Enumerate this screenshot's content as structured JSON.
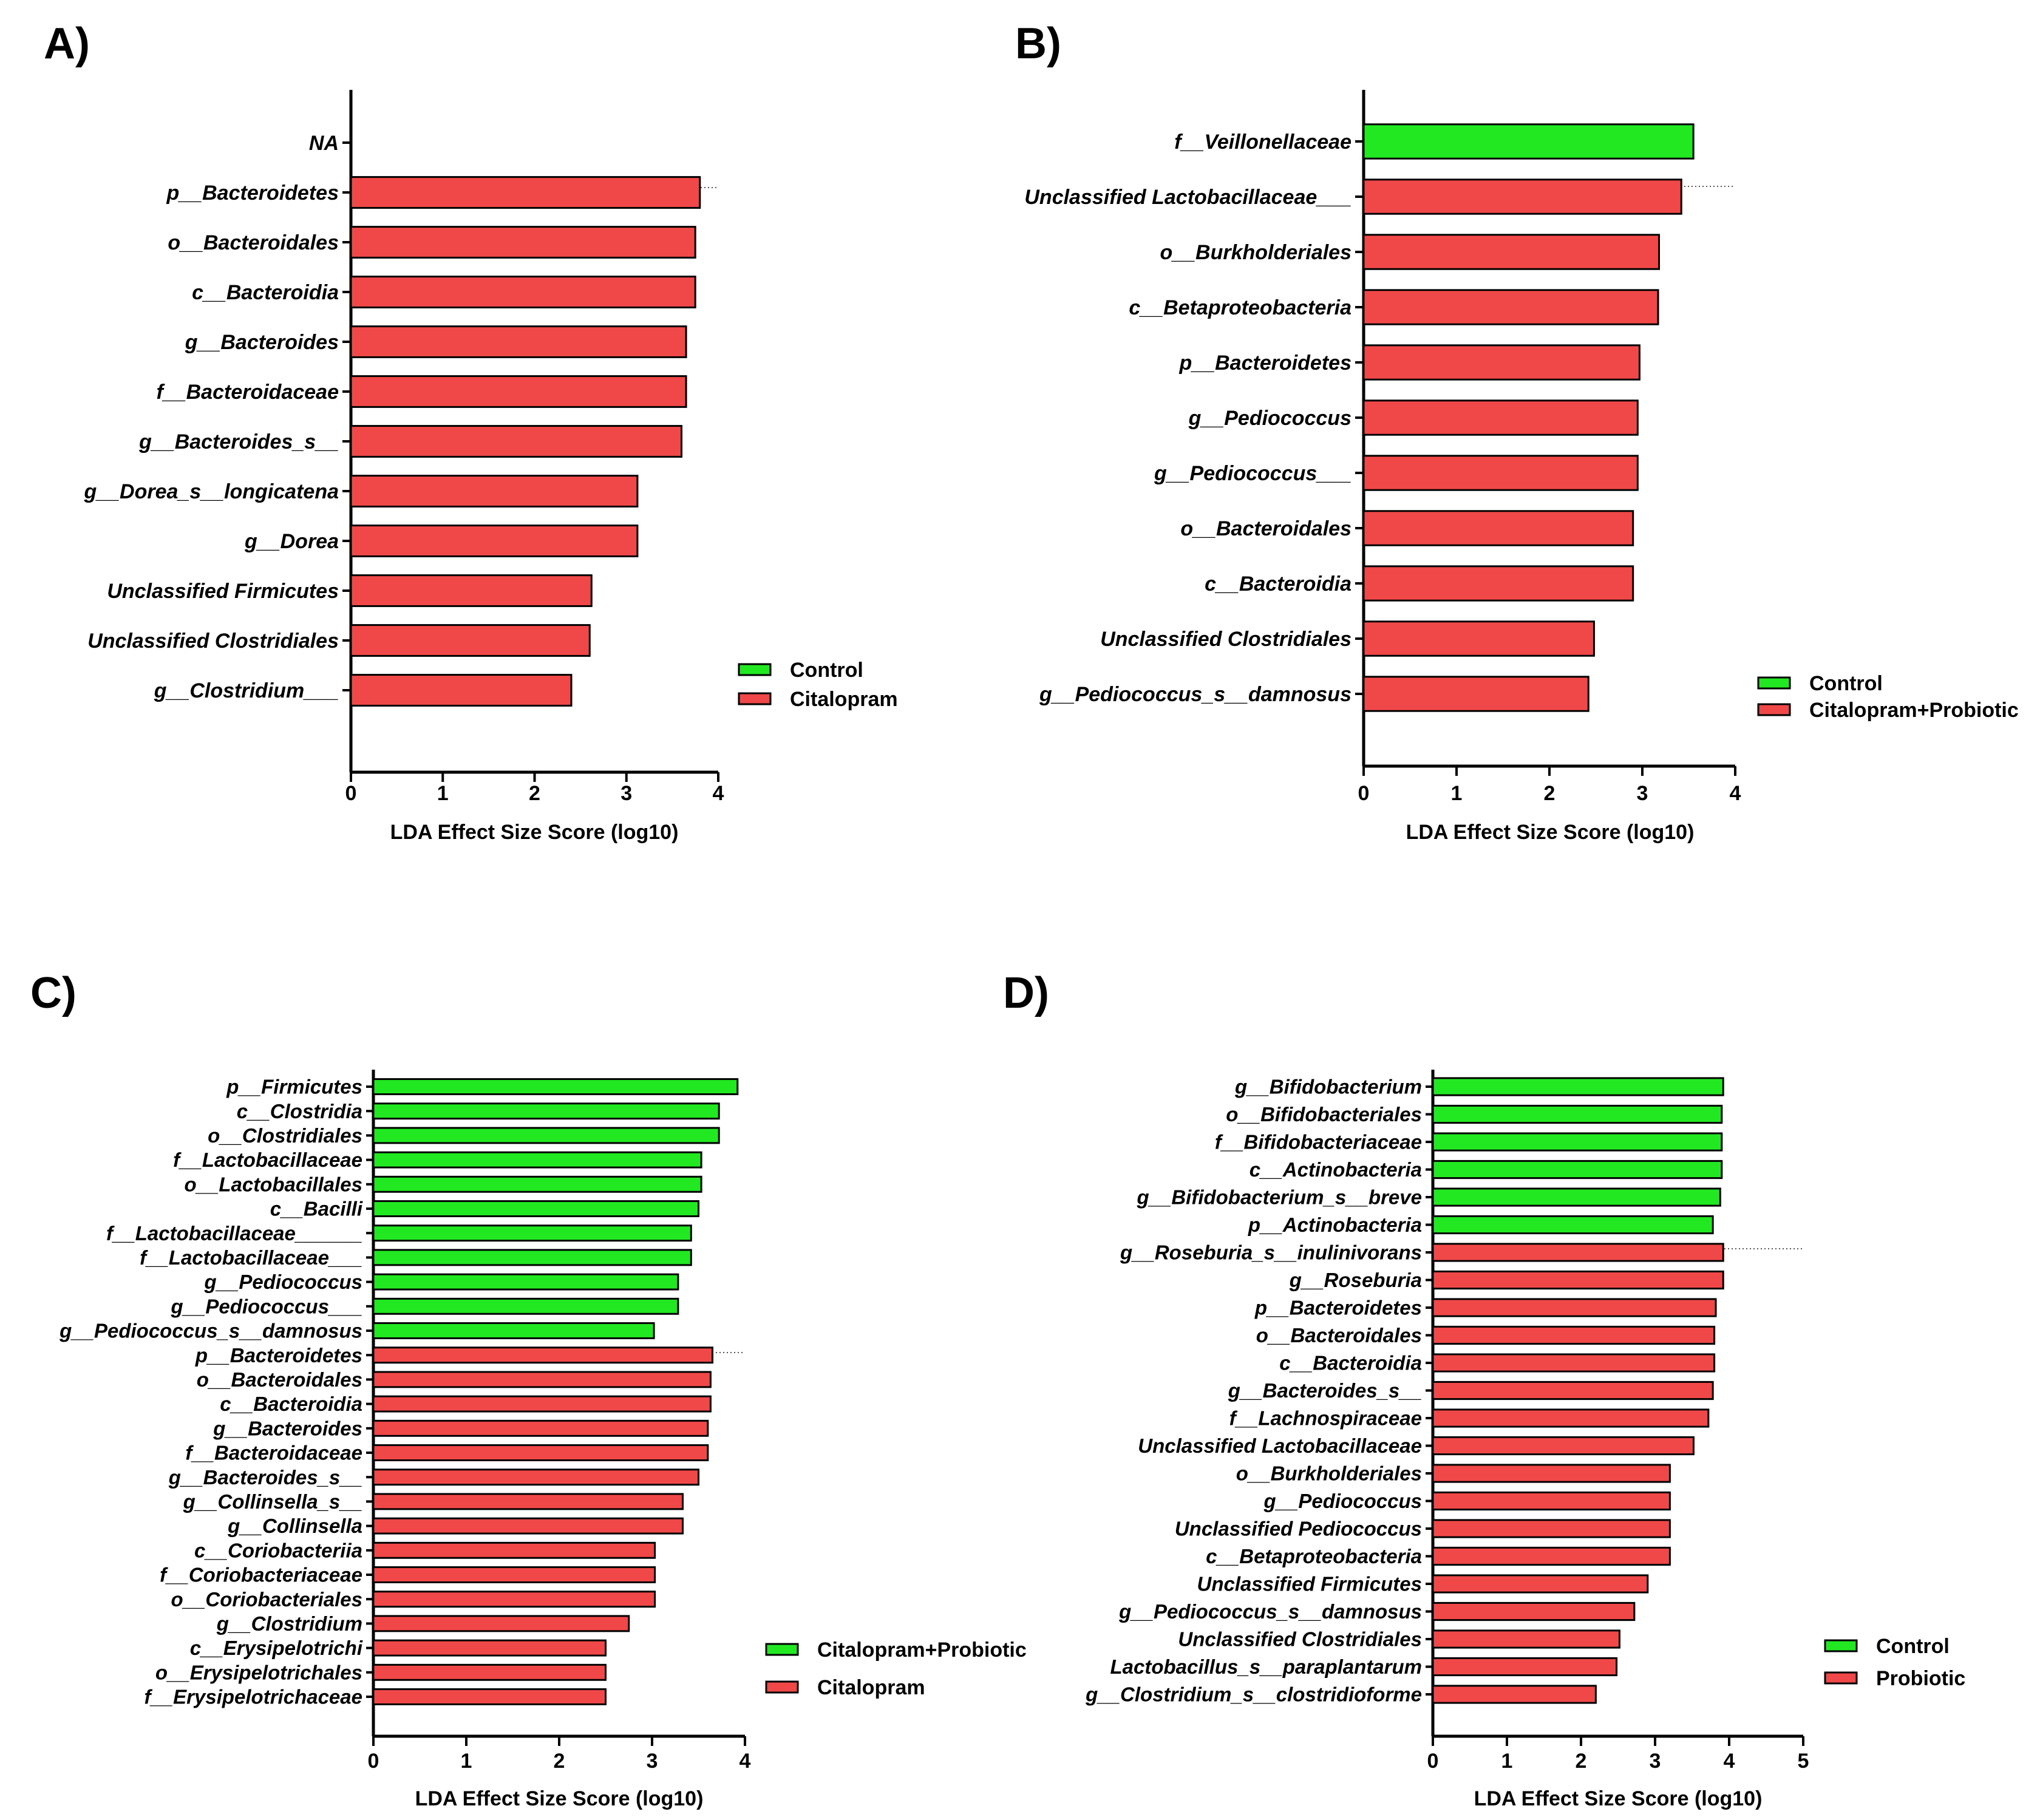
{
  "colors": {
    "control": "#22e822",
    "treatment": "#f04848",
    "stroke": "#000000"
  },
  "chart_data": [
    {
      "panel": "A)",
      "type": "bar",
      "orientation": "horizontal",
      "xlabel": "LDA Effect Size Score (log10)",
      "xlim": [
        0,
        4
      ],
      "xticks": [
        "0",
        "1",
        "2",
        "3",
        "4"
      ],
      "legend": [
        "Control",
        "Citalopram"
      ],
      "categories": [
        "NA",
        "p__Bacteroidetes",
        "o__Bacteroidales",
        "c__Bacteroidia",
        "g__Bacteroides",
        "f__Bacteroidaceae",
        "g__Bacteroides_s__",
        "g__Dorea_s__longicatena",
        "g__Dorea",
        "Unclassified Firmicutes",
        "Unclassified Clostridiales",
        "g__Clostridium___"
      ],
      "values": [
        0,
        3.8,
        3.75,
        3.75,
        3.65,
        3.65,
        3.6,
        3.12,
        3.12,
        2.62,
        2.6,
        2.4
      ],
      "groups": [
        "Control",
        "Citalopram",
        "Citalopram",
        "Citalopram",
        "Citalopram",
        "Citalopram",
        "Citalopram",
        "Citalopram",
        "Citalopram",
        "Citalopram",
        "Citalopram",
        "Citalopram"
      ]
    },
    {
      "panel": "B)",
      "type": "bar",
      "orientation": "horizontal",
      "xlabel": "LDA Effect Size Score (log10)",
      "xlim": [
        0,
        4
      ],
      "xticks": [
        "0",
        "1",
        "2",
        "3",
        "4"
      ],
      "legend": [
        "Control",
        "Citalopram+Probiotic"
      ],
      "categories": [
        "f__Veillonellaceae",
        "Unclassified Lactobacillaceae___",
        "o__Burkholderiales",
        "c__Betaproteobacteria",
        "p__Bacteroidetes",
        "g__Pediococcus",
        "g__Pediococcus___",
        "o__Bacteroidales",
        "c__Bacteroidia",
        "Unclassified Clostridiales",
        "g__Pediococcus_s__damnosus"
      ],
      "values": [
        3.55,
        3.42,
        3.18,
        3.17,
        2.97,
        2.95,
        2.95,
        2.9,
        2.9,
        2.48,
        2.42
      ],
      "groups": [
        "Control",
        "Citalopram+Probiotic",
        "Citalopram+Probiotic",
        "Citalopram+Probiotic",
        "Citalopram+Probiotic",
        "Citalopram+Probiotic",
        "Citalopram+Probiotic",
        "Citalopram+Probiotic",
        "Citalopram+Probiotic",
        "Citalopram+Probiotic",
        "Citalopram+Probiotic"
      ]
    },
    {
      "panel": "C)",
      "type": "bar",
      "orientation": "horizontal",
      "xlabel": "LDA Effect Size Score (log10)",
      "xlim": [
        0,
        4
      ],
      "xticks": [
        "0",
        "1",
        "2",
        "3",
        "4"
      ],
      "legend": [
        "Citalopram+Probiotic",
        "Citalopram"
      ],
      "categories": [
        "p__Firmicutes",
        "c__Clostridia",
        "o__Clostridiales",
        "f__Lactobacillaceae",
        "o__Lactobacillales",
        "c__Bacilli",
        "f__Lactobacillaceae______",
        "f__Lactobacillaceae___",
        "g__Pediococcus",
        "g__Pediococcus___",
        "g__Pediococcus_s__damnosus",
        "p__Bacteroidetes",
        "o__Bacteroidales",
        "c__Bacteroidia",
        "g__Bacteroides",
        "f__Bacteroidaceae",
        "g__Bacteroides_s__",
        "g__Collinsella_s__",
        "g__Collinsella",
        "c__Coriobacteriia",
        "f__Coriobacteriaceae",
        "o__Coriobacteriales",
        "g__Clostridium",
        "c__Erysipelotrichi",
        "o__Erysipelotrichales",
        "f__Erysipelotrichaceae"
      ],
      "values": [
        3.92,
        3.72,
        3.72,
        3.53,
        3.53,
        3.5,
        3.42,
        3.42,
        3.28,
        3.28,
        3.02,
        3.65,
        3.63,
        3.63,
        3.6,
        3.6,
        3.5,
        3.33,
        3.33,
        3.03,
        3.03,
        3.03,
        2.75,
        2.5,
        2.5,
        2.5
      ],
      "groups": [
        "Citalopram+Probiotic",
        "Citalopram+Probiotic",
        "Citalopram+Probiotic",
        "Citalopram+Probiotic",
        "Citalopram+Probiotic",
        "Citalopram+Probiotic",
        "Citalopram+Probiotic",
        "Citalopram+Probiotic",
        "Citalopram+Probiotic",
        "Citalopram+Probiotic",
        "Citalopram+Probiotic",
        "Citalopram",
        "Citalopram",
        "Citalopram",
        "Citalopram",
        "Citalopram",
        "Citalopram",
        "Citalopram",
        "Citalopram",
        "Citalopram",
        "Citalopram",
        "Citalopram",
        "Citalopram",
        "Citalopram",
        "Citalopram",
        "Citalopram"
      ]
    },
    {
      "panel": "D)",
      "type": "bar",
      "orientation": "horizontal",
      "xlabel": "LDA Effect Size Score (log10)",
      "xlim": [
        0,
        5
      ],
      "xticks": [
        "0",
        "1",
        "2",
        "3",
        "4",
        "5"
      ],
      "legend": [
        "Control",
        "Probiotic"
      ],
      "categories": [
        "g__Bifidobacterium",
        "o__Bifidobacteriales",
        "f__Bifidobacteriaceae",
        "c__Actinobacteria",
        "g__Bifidobacterium_s__breve",
        "p__Actinobacteria",
        "g__Roseburia_s__inulinivorans",
        "g__Roseburia",
        "p__Bacteroidetes",
        "o__Bacteroidales",
        "c__Bacteroidia",
        "g__Bacteroides_s__",
        "f__Lachnospiraceae",
        "Unclassified Lactobacillaceae",
        "o__Burkholderiales",
        "g__Pediococcus",
        "Unclassified Pediococcus",
        "c__Betaproteobacteria",
        "Unclassified Firmicutes",
        "g__Pediococcus_s__damnosus",
        "Unclassified Clostridiales",
        "Lactobacillus_s__paraplantarum",
        "g__Clostridium_s__clostridioforme"
      ],
      "values": [
        3.92,
        3.9,
        3.9,
        3.9,
        3.88,
        3.78,
        3.92,
        3.92,
        3.82,
        3.8,
        3.8,
        3.78,
        3.72,
        3.52,
        3.2,
        3.2,
        3.2,
        3.2,
        2.9,
        2.72,
        2.52,
        2.48,
        2.2
      ],
      "groups": [
        "Control",
        "Control",
        "Control",
        "Control",
        "Control",
        "Control",
        "Probiotic",
        "Probiotic",
        "Probiotic",
        "Probiotic",
        "Probiotic",
        "Probiotic",
        "Probiotic",
        "Probiotic",
        "Probiotic",
        "Probiotic",
        "Probiotic",
        "Probiotic",
        "Probiotic",
        "Probiotic",
        "Probiotic",
        "Probiotic",
        "Probiotic"
      ]
    }
  ]
}
